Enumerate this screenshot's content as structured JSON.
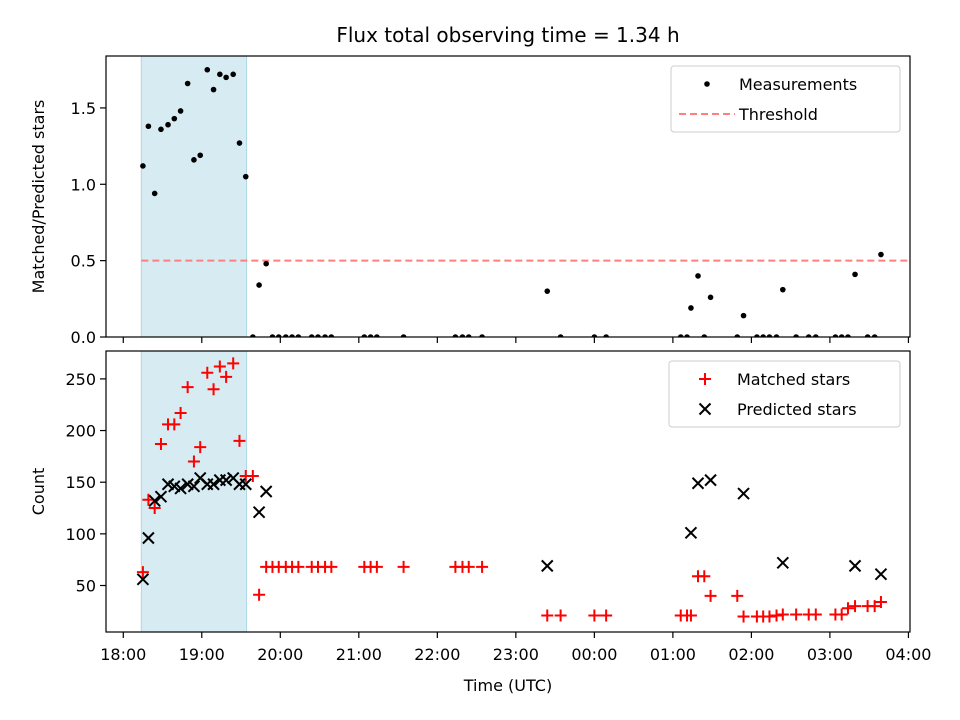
{
  "title": "Flux total observing time = 1.34 h",
  "xlabel": "Time (UTC)",
  "colors": {
    "shade": "#add8e6",
    "threshold": "#ff7f7f",
    "matched": "#ff0000",
    "predicted": "#000000",
    "measurement": "#000000"
  },
  "x_ticks": [
    {
      "h": 18,
      "label": "18:00"
    },
    {
      "h": 19,
      "label": "19:00"
    },
    {
      "h": 20,
      "label": "20:00"
    },
    {
      "h": 21,
      "label": "21:00"
    },
    {
      "h": 22,
      "label": "22:00"
    },
    {
      "h": 23,
      "label": "23:00"
    },
    {
      "h": 24,
      "label": "00:00"
    },
    {
      "h": 25,
      "label": "01:00"
    },
    {
      "h": 26,
      "label": "02:00"
    },
    {
      "h": 27,
      "label": "03:00"
    },
    {
      "h": 28,
      "label": "04:00"
    }
  ],
  "chart_data": [
    {
      "type": "scatter",
      "ylabel": "Matched/Predicted stars",
      "xlim": [
        17.78,
        28.02
      ],
      "ylim": [
        0,
        1.84
      ],
      "yticks": [
        {
          "v": 0,
          "label": "0.0"
        },
        {
          "v": 0.5,
          "label": "0.5"
        },
        {
          "v": 1.0,
          "label": "1.0"
        },
        {
          "v": 1.5,
          "label": "1.5"
        }
      ],
      "shaded_interval": [
        18.23,
        19.57
      ],
      "legend": {
        "position": "upper right",
        "entries": [
          "Measurements",
          "Threshold"
        ]
      },
      "threshold": {
        "name": "Threshold",
        "y": 0.5,
        "x": [
          18.23,
          28.0
        ]
      },
      "series": [
        {
          "name": "Measurements",
          "points": [
            [
              18.25,
              1.12
            ],
            [
              18.32,
              1.38
            ],
            [
              18.4,
              0.94
            ],
            [
              18.48,
              1.36
            ],
            [
              18.57,
              1.39
            ],
            [
              18.65,
              1.43
            ],
            [
              18.73,
              1.48
            ],
            [
              18.82,
              1.66
            ],
            [
              18.9,
              1.16
            ],
            [
              18.98,
              1.19
            ],
            [
              19.07,
              1.75
            ],
            [
              19.15,
              1.62
            ],
            [
              19.23,
              1.72
            ],
            [
              19.31,
              1.7
            ],
            [
              19.4,
              1.72
            ],
            [
              19.48,
              1.27
            ],
            [
              19.56,
              1.05
            ],
            [
              19.65,
              0
            ],
            [
              19.73,
              0.34
            ],
            [
              19.82,
              0.48
            ],
            [
              19.9,
              0
            ],
            [
              19.98,
              0
            ],
            [
              20.07,
              0
            ],
            [
              20.15,
              0
            ],
            [
              20.23,
              0
            ],
            [
              20.4,
              0
            ],
            [
              20.48,
              0
            ],
            [
              20.57,
              0
            ],
            [
              20.65,
              0
            ],
            [
              21.07,
              0
            ],
            [
              21.15,
              0
            ],
            [
              21.23,
              0
            ],
            [
              21.57,
              0
            ],
            [
              22.23,
              0
            ],
            [
              22.32,
              0
            ],
            [
              22.4,
              0
            ],
            [
              22.57,
              0
            ],
            [
              23.4,
              0.3
            ],
            [
              23.57,
              0
            ],
            [
              24.0,
              0
            ],
            [
              24.15,
              0
            ],
            [
              25.1,
              0
            ],
            [
              25.18,
              0
            ],
            [
              25.23,
              0.19
            ],
            [
              25.32,
              0.4
            ],
            [
              25.4,
              0
            ],
            [
              25.48,
              0.26
            ],
            [
              25.82,
              0
            ],
            [
              25.9,
              0.14
            ],
            [
              26.07,
              0
            ],
            [
              26.15,
              0
            ],
            [
              26.23,
              0
            ],
            [
              26.32,
              0
            ],
            [
              26.4,
              0.31
            ],
            [
              26.57,
              0
            ],
            [
              26.73,
              0
            ],
            [
              26.82,
              0
            ],
            [
              27.07,
              0
            ],
            [
              27.15,
              0
            ],
            [
              27.23,
              0
            ],
            [
              27.32,
              0.41
            ],
            [
              27.48,
              0
            ],
            [
              27.57,
              0
            ],
            [
              27.65,
              0.54
            ]
          ]
        }
      ]
    },
    {
      "type": "scatter",
      "ylabel": "Count",
      "xlim": [
        17.78,
        28.02
      ],
      "ylim": [
        5,
        277
      ],
      "yticks": [
        {
          "v": 50,
          "label": "50"
        },
        {
          "v": 100,
          "label": "100"
        },
        {
          "v": 150,
          "label": "150"
        },
        {
          "v": 200,
          "label": "200"
        },
        {
          "v": 250,
          "label": "250"
        }
      ],
      "shaded_interval": [
        18.23,
        19.57
      ],
      "legend": {
        "position": "upper right",
        "entries": [
          "Matched stars",
          "Predicted stars"
        ]
      },
      "series": [
        {
          "name": "Matched stars",
          "marker": "plus",
          "points": [
            [
              18.25,
              63
            ],
            [
              18.32,
              133
            ],
            [
              18.4,
              125
            ],
            [
              18.48,
              187
            ],
            [
              18.57,
              206
            ],
            [
              18.65,
              206
            ],
            [
              18.73,
              217
            ],
            [
              18.82,
              242
            ],
            [
              18.9,
              170
            ],
            [
              18.98,
              184
            ],
            [
              19.07,
              256
            ],
            [
              19.15,
              240
            ],
            [
              19.23,
              262
            ],
            [
              19.31,
              252
            ],
            [
              19.4,
              265
            ],
            [
              19.48,
              190
            ],
            [
              19.56,
              156
            ],
            [
              19.65,
              156
            ],
            [
              19.73,
              41
            ],
            [
              19.82,
              68
            ],
            [
              19.9,
              68
            ],
            [
              19.98,
              68
            ],
            [
              20.07,
              68
            ],
            [
              20.15,
              68
            ],
            [
              20.23,
              68
            ],
            [
              20.4,
              68
            ],
            [
              20.48,
              68
            ],
            [
              20.57,
              68
            ],
            [
              20.65,
              68
            ],
            [
              21.07,
              68
            ],
            [
              21.15,
              68
            ],
            [
              21.23,
              68
            ],
            [
              21.57,
              68
            ],
            [
              22.23,
              68
            ],
            [
              22.32,
              68
            ],
            [
              22.4,
              68
            ],
            [
              22.57,
              68
            ],
            [
              23.4,
              21
            ],
            [
              23.57,
              21
            ],
            [
              24.0,
              21
            ],
            [
              24.15,
              21
            ],
            [
              25.1,
              21
            ],
            [
              25.18,
              21
            ],
            [
              25.23,
              21
            ],
            [
              25.32,
              59
            ],
            [
              25.4,
              59
            ],
            [
              25.48,
              40
            ],
            [
              25.82,
              40
            ],
            [
              25.9,
              20
            ],
            [
              26.07,
              20
            ],
            [
              26.15,
              20
            ],
            [
              26.23,
              20
            ],
            [
              26.32,
              21
            ],
            [
              26.4,
              22
            ],
            [
              26.57,
              22
            ],
            [
              26.73,
              22
            ],
            [
              26.82,
              22
            ],
            [
              27.07,
              22
            ],
            [
              27.15,
              22
            ],
            [
              27.23,
              28
            ],
            [
              27.32,
              30
            ],
            [
              27.48,
              30
            ],
            [
              27.57,
              30
            ],
            [
              27.65,
              34
            ]
          ]
        },
        {
          "name": "Predicted stars",
          "marker": "x",
          "points": [
            [
              18.25,
              56
            ],
            [
              18.32,
              96
            ],
            [
              18.4,
              132
            ],
            [
              18.48,
              136
            ],
            [
              18.57,
              148
            ],
            [
              18.65,
              146
            ],
            [
              18.73,
              144
            ],
            [
              18.82,
              148
            ],
            [
              18.9,
              146
            ],
            [
              18.98,
              154
            ],
            [
              19.07,
              148
            ],
            [
              19.15,
              148
            ],
            [
              19.23,
              152
            ],
            [
              19.31,
              152
            ],
            [
              19.4,
              154
            ],
            [
              19.48,
              148
            ],
            [
              19.56,
              148
            ],
            [
              19.73,
              121
            ],
            [
              19.82,
              141
            ],
            [
              23.4,
              69
            ],
            [
              25.23,
              101
            ],
            [
              25.32,
              149
            ],
            [
              25.48,
              152
            ],
            [
              25.9,
              139
            ],
            [
              26.4,
              72
            ],
            [
              27.32,
              69
            ],
            [
              27.65,
              61
            ]
          ]
        }
      ]
    }
  ]
}
